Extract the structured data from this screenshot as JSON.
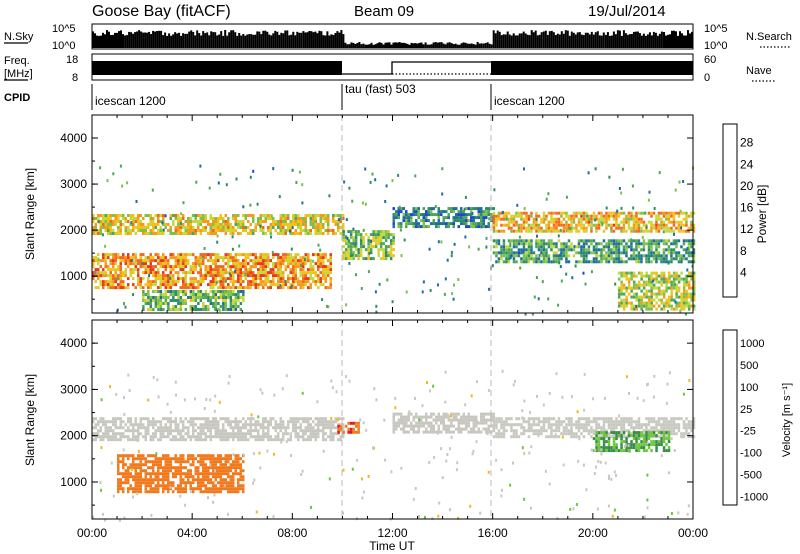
{
  "header": {
    "station": "Goose Bay (fitACF)",
    "beam": "Beam 09",
    "date": "19/Jul/2014"
  },
  "top_panels": {
    "nsky_label": "N.Sky",
    "nsky_ticks": [
      "10^5",
      "10^0"
    ],
    "nsearch_label": "N.Search",
    "freq_label_1": "Freq.",
    "freq_label_2": "[MHz]",
    "freq_ticks": [
      "18",
      "8"
    ],
    "nave_ticks": [
      "60",
      "0"
    ],
    "nave_label": "Nave",
    "cpid_label": "CPID",
    "cpid_segments": [
      {
        "name": "icescan 1200",
        "start_hour": 0
      },
      {
        "name": "tau (fast) 503",
        "start_hour": 10
      },
      {
        "name": "icescan 1200",
        "start_hour": 16
      }
    ]
  },
  "time_axis": {
    "ticks": [
      "00:00",
      "04:00",
      "08:00",
      "12:00",
      "16:00",
      "20:00",
      "00:00"
    ],
    "label": "Time UT"
  },
  "chart_data": [
    {
      "type": "heatmap",
      "title": "Power",
      "ylabel": "Slant Range [km]",
      "xlabel": "Time UT",
      "xlim_hours": [
        0,
        24
      ],
      "ylim": [
        200,
        4500
      ],
      "yticks": [
        "1000",
        "2000",
        "3000",
        "4000"
      ],
      "colorbar_label": "Power [dB]",
      "colorbar_ticks": [
        "4",
        "8",
        "12",
        "16",
        "20",
        "24",
        "28"
      ],
      "colorbar_colors": [
        "#1a1aff",
        "#2346c8",
        "#1e6e9e",
        "#2e8c6a",
        "#4fa65a",
        "#7cc24a",
        "#c6d83a",
        "#f2c21a",
        "#f59a1e",
        "#f26a1e",
        "#e83a1e",
        "#e01a1a"
      ],
      "bands": [
        {
          "t_start": 0.0,
          "t_end": 10.0,
          "r_low": 1950,
          "r_high": 2350,
          "level": 18
        },
        {
          "t_start": 0.0,
          "t_end": 9.5,
          "r_low": 750,
          "r_high": 1500,
          "level": 22
        },
        {
          "t_start": 2.0,
          "t_end": 6.0,
          "r_low": 300,
          "r_high": 700,
          "level": 12
        },
        {
          "t_start": 10.0,
          "t_end": 12.0,
          "r_low": 1400,
          "r_high": 2000,
          "level": 14
        },
        {
          "t_start": 12.0,
          "t_end": 16.0,
          "r_low": 2100,
          "r_high": 2500,
          "level": 8
        },
        {
          "t_start": 16.0,
          "t_end": 24.0,
          "r_low": 2000,
          "r_high": 2400,
          "level": 20
        },
        {
          "t_start": 16.0,
          "t_end": 24.0,
          "r_low": 1300,
          "r_high": 1800,
          "level": 10
        },
        {
          "t_start": 21.0,
          "t_end": 24.0,
          "r_low": 300,
          "r_high": 1100,
          "level": 16
        }
      ]
    },
    {
      "type": "heatmap",
      "title": "Velocity",
      "ylabel": "Slant Range [km]",
      "xlabel": "Time UT",
      "xlim_hours": [
        0,
        24
      ],
      "ylim": [
        200,
        4500
      ],
      "yticks": [
        "1000",
        "2000",
        "3000",
        "4000"
      ],
      "colorbar_label": "Velocity [m s⁻¹]",
      "colorbar_ticks": [
        "1000",
        "500",
        "100",
        "25",
        "-25",
        "-100",
        "-500",
        "-1000"
      ],
      "colorbar_colors": [
        "#1a3ccc",
        "#2a6b9a",
        "#3a8a4a",
        "#6cc83a",
        "#c8c8c0",
        "#f2b81e",
        "#f27a1e",
        "#e01a1a"
      ],
      "bands": [
        {
          "t_start": 0.0,
          "t_end": 10.0,
          "r_low": 1900,
          "r_high": 2400,
          "value": 0
        },
        {
          "t_start": 1.0,
          "t_end": 6.0,
          "r_low": 800,
          "r_high": 1600,
          "value": -300
        },
        {
          "t_start": 9.8,
          "t_end": 10.6,
          "r_low": 2050,
          "r_high": 2300,
          "value": -500
        },
        {
          "t_start": 12.0,
          "t_end": 16.0,
          "r_low": 2100,
          "r_high": 2500,
          "value": 0
        },
        {
          "t_start": 16.0,
          "t_end": 24.0,
          "r_low": 2000,
          "r_high": 2400,
          "value": 0
        },
        {
          "t_start": 20.0,
          "t_end": 23.0,
          "r_low": 1700,
          "r_high": 2100,
          "value": 60
        }
      ]
    }
  ]
}
